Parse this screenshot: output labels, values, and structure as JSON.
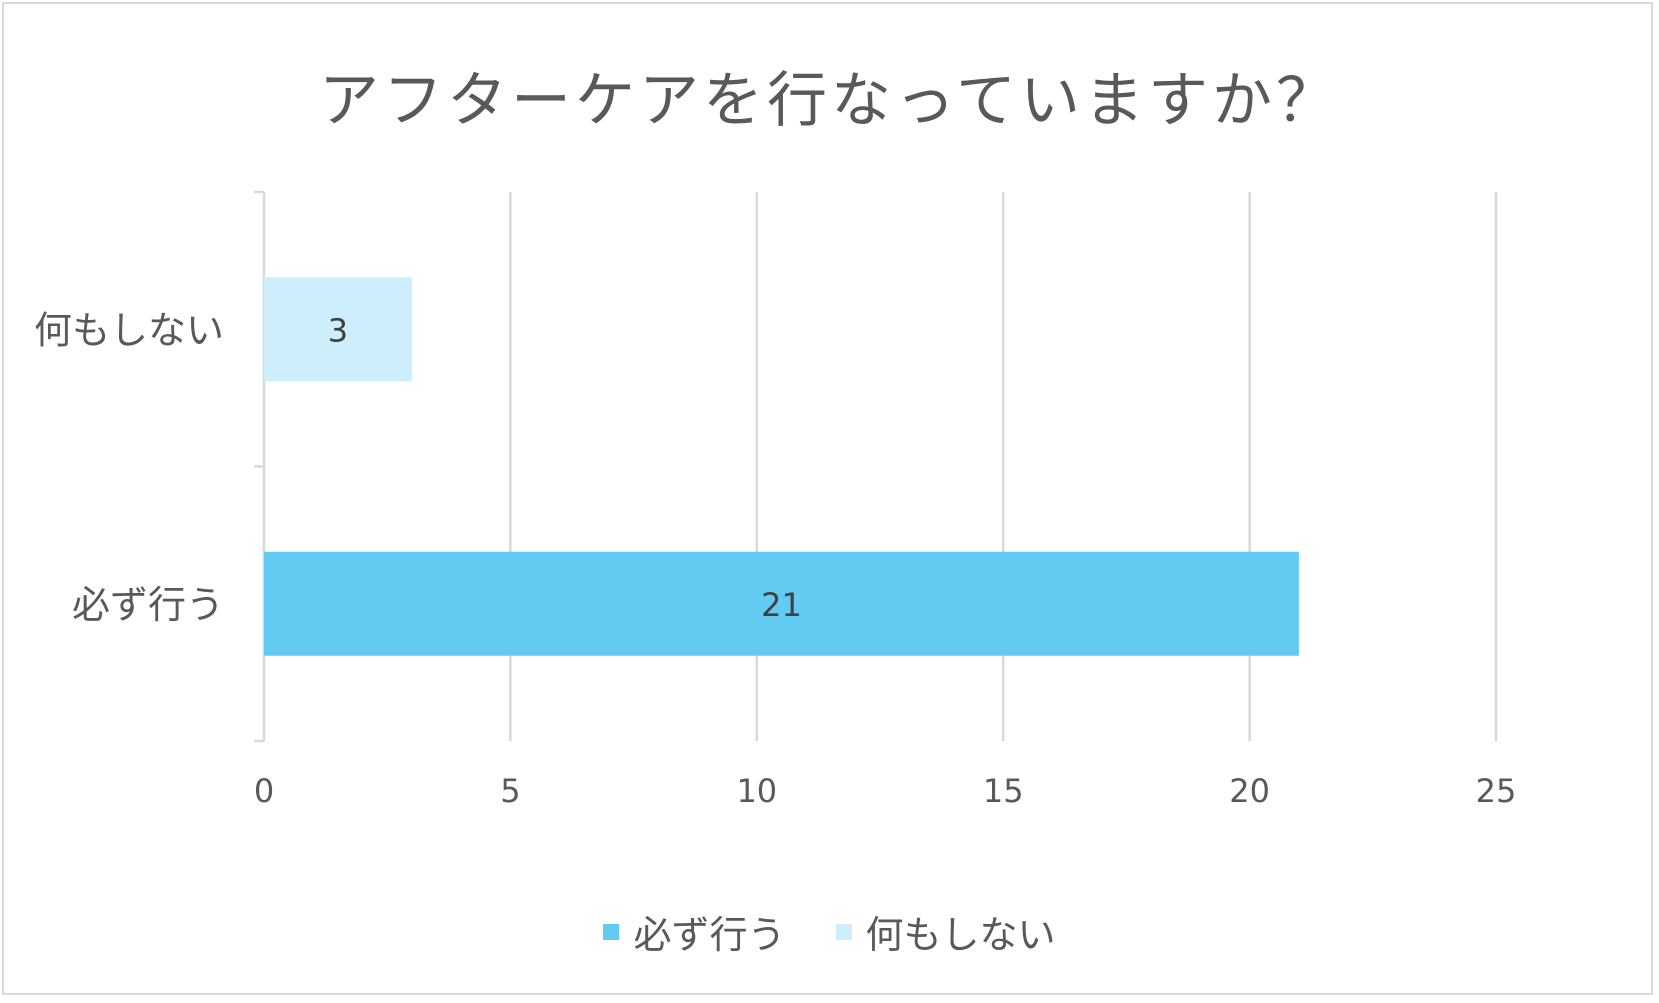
{
  "chart_data": {
    "type": "bar",
    "orientation": "horizontal",
    "title": "アフターケアを行なっていますか？",
    "categories": [
      "何もしない",
      "必ず行う"
    ],
    "series": [
      {
        "name": "必ず行う",
        "color": "#63cbf1",
        "values": [
          null,
          21
        ]
      },
      {
        "name": "何もしない",
        "color": "#cdeefb",
        "values": [
          3,
          null
        ]
      }
    ],
    "data_labels": [
      "3",
      "21"
    ],
    "xlim": [
      0,
      25
    ],
    "x_ticks": [
      "0",
      "5",
      "10",
      "15",
      "20",
      "25"
    ],
    "grid": true,
    "legend_position": "bottom"
  }
}
